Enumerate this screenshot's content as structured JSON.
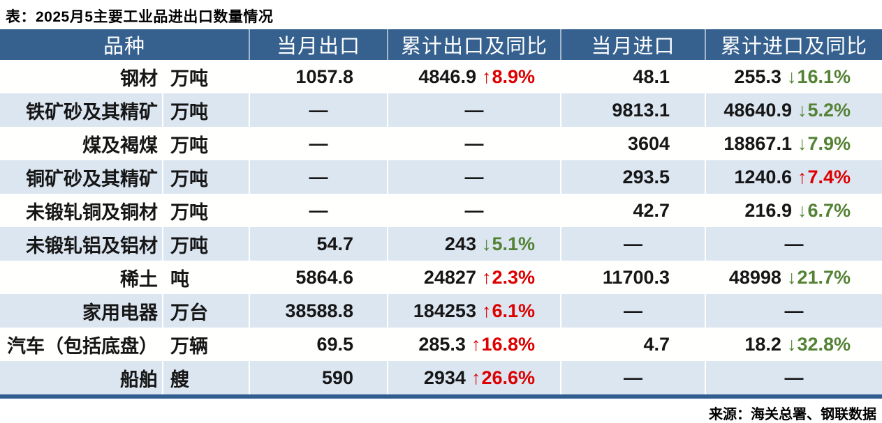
{
  "title": "表：2025月5主要工业品进出口数量情况",
  "source": "来源：海关总署、钢联数据",
  "colors": {
    "header_bg": "#36618f",
    "row_alt_bg": "#dce6f1",
    "bottom_bar": "#2f5d90",
    "up_red": "#dd0000",
    "down_green": "#548235",
    "header_text": "#ffffff",
    "body_text": "#161616"
  },
  "icons": {
    "up_arrow": "↑",
    "down_arrow": "↓",
    "dash": "—"
  },
  "chart_data": {
    "type": "table",
    "title": "表：2025月5主要工业品进出口数量情况",
    "columns": [
      "品种",
      "当月出口",
      "累计出口及同比",
      "当月进口",
      "累计进口及同比"
    ],
    "rows": [
      {
        "name": "钢材",
        "unit": "万吨",
        "export_month": "1057.8",
        "export_cum": {
          "value": "4846.9",
          "dir": "up",
          "pct": "8.9%"
        },
        "import_month": "48.1",
        "import_cum": {
          "value": "255.3",
          "dir": "down",
          "pct": "16.1%"
        }
      },
      {
        "name": "铁矿砂及其精矿",
        "unit": "万吨",
        "export_month": "—",
        "export_cum": "—",
        "import_month": "9813.1",
        "import_cum": {
          "value": "48640.9",
          "dir": "down",
          "pct": "5.2%"
        }
      },
      {
        "name": "煤及褐煤",
        "unit": "万吨",
        "export_month": "—",
        "export_cum": "—",
        "import_month": "3604",
        "import_cum": {
          "value": "18867.1",
          "dir": "down",
          "pct": "7.9%"
        }
      },
      {
        "name": "铜矿砂及其精矿",
        "unit": "万吨",
        "export_month": "—",
        "export_cum": "—",
        "import_month": "293.5",
        "import_cum": {
          "value": "1240.6",
          "dir": "up",
          "pct": "7.4%"
        }
      },
      {
        "name": "未锻轧铜及铜材",
        "unit": "万吨",
        "export_month": "—",
        "export_cum": "—",
        "import_month": "42.7",
        "import_cum": {
          "value": "216.9",
          "dir": "down",
          "pct": "6.7%"
        }
      },
      {
        "name": "未锻轧铝及铝材",
        "unit": "万吨",
        "export_month": "54.7",
        "export_cum": {
          "value": "243",
          "dir": "down",
          "pct": "5.1%"
        },
        "import_month": "—",
        "import_cum": "—"
      },
      {
        "name": "稀土",
        "unit": "吨",
        "export_month": "5864.6",
        "export_cum": {
          "value": "24827",
          "dir": "up",
          "pct": "2.3%"
        },
        "import_month": "11700.3",
        "import_cum": {
          "value": "48998",
          "dir": "down",
          "pct": "21.7%"
        }
      },
      {
        "name": "家用电器",
        "unit": "万台",
        "export_month": "38588.8",
        "export_cum": {
          "value": "184253",
          "dir": "up",
          "pct": "6.1%"
        },
        "import_month": "—",
        "import_cum": "—"
      },
      {
        "name": "汽车（包括底盘）",
        "unit": "万辆",
        "export_month": "69.5",
        "export_cum": {
          "value": "285.3",
          "dir": "up",
          "pct": "16.8%"
        },
        "import_month": "4.7",
        "import_cum": {
          "value": "18.2",
          "dir": "down",
          "pct": "32.8%"
        }
      },
      {
        "name": "船舶",
        "unit": "艘",
        "export_month": "590",
        "export_cum": {
          "value": "2934",
          "dir": "up",
          "pct": "26.6%"
        },
        "import_month": "—",
        "import_cum": "—"
      }
    ]
  }
}
